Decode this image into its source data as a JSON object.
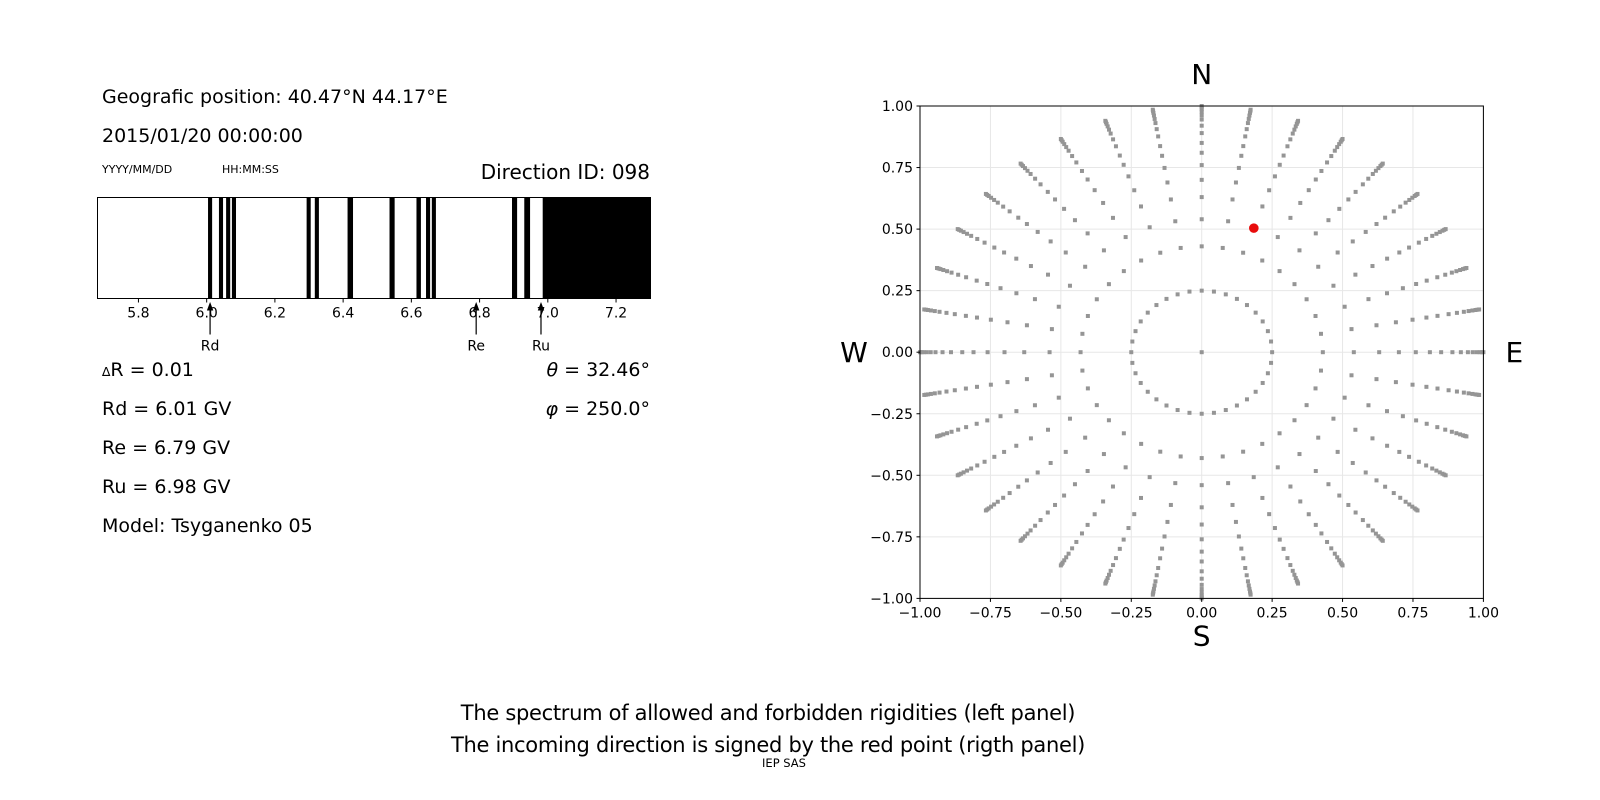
{
  "header": {
    "geo_position": "Geografic position: 40.47°N 44.17°E",
    "datetime": "2015/01/20 00:00:00",
    "date_format_label": "YYYY/MM/DD",
    "time_format_label": "HH:MM:SS",
    "direction_id": "Direction ID: 098"
  },
  "parameters": {
    "delta_symbol": "∆",
    "delta_rest": "R = 0.01",
    "rd": "Rd = 6.01 GV",
    "re": "Re = 6.79 GV",
    "ru": "Ru = 6.98 GV",
    "model": "Model: Tsyganenko 05",
    "theta_symbol": "θ",
    "theta_rest": " = 32.46°",
    "phi_symbol": "φ",
    "phi_rest": " = 250.0°"
  },
  "captions": {
    "line1": "The spectrum of allowed and forbidden rigidities (left panel)",
    "line2": "The incoming direction is signed by the red point (rigth panel)",
    "credit": "IEP SAS"
  },
  "chart_data": [
    {
      "type": "bar",
      "name": "rigidity-spectrum",
      "title": "Direction ID: 098",
      "xlabel": "",
      "ylabel": "",
      "xlim": [
        5.68,
        7.301
      ],
      "xticks": [
        5.8,
        6.0,
        6.2,
        6.4,
        6.6,
        6.8,
        7.0,
        7.2
      ],
      "xtick_labels": [
        "5.8",
        "6.0",
        "6.2",
        "6.4",
        "6.6",
        "6.8",
        "7.0",
        "7.2"
      ],
      "bar_color": "#000000",
      "allowed_color": "#ffffff",
      "forbidden_bands": [
        [
          6.004,
          6.016
        ],
        [
          6.036,
          6.048
        ],
        [
          6.057,
          6.069
        ],
        [
          6.074,
          6.086
        ],
        [
          6.293,
          6.305
        ],
        [
          6.317,
          6.329
        ],
        [
          6.413,
          6.429
        ],
        [
          6.536,
          6.551
        ],
        [
          6.615,
          6.628
        ],
        [
          6.643,
          6.655
        ],
        [
          6.66,
          6.672
        ],
        [
          6.895,
          6.91
        ],
        [
          6.931,
          6.948
        ],
        [
          6.985,
          7.301
        ]
      ],
      "markers": [
        {
          "label": "Rd",
          "value": 6.01
        },
        {
          "label": "Re",
          "value": 6.79
        },
        {
          "label": "Ru",
          "value": 6.98
        }
      ]
    },
    {
      "type": "scatter",
      "name": "incoming-direction-map",
      "xlim": [
        -1.0,
        1.0
      ],
      "ylim": [
        -1.0,
        1.0
      ],
      "grid": true,
      "grid_color": "#e7e7e7",
      "ticks": [
        -1.0,
        -0.75,
        -0.5,
        -0.25,
        0.0,
        0.25,
        0.5,
        0.75,
        1.0
      ],
      "tick_labels": [
        "−1.00",
        "−0.75",
        "−0.50",
        "−0.25",
        "0.00",
        "0.25",
        "0.50",
        "0.75",
        "1.00"
      ],
      "compass": {
        "top": "N",
        "right": "E",
        "bottom": "S",
        "left": "W"
      },
      "spoke_count": 36,
      "spoke_azimuth_step_deg": 10,
      "spoke_radii": [
        0.25,
        0.43,
        0.54,
        0.63,
        0.7,
        0.76,
        0.81,
        0.85,
        0.89,
        0.92,
        0.945,
        0.962,
        0.976,
        0.987,
        0.994,
        1.0
      ],
      "center_point": {
        "x": 0.0,
        "y": 0.0
      },
      "red_point": {
        "x": 0.185,
        "y": 0.504
      },
      "dot_color": "#959595",
      "red_color": "#e80c0c"
    }
  ]
}
